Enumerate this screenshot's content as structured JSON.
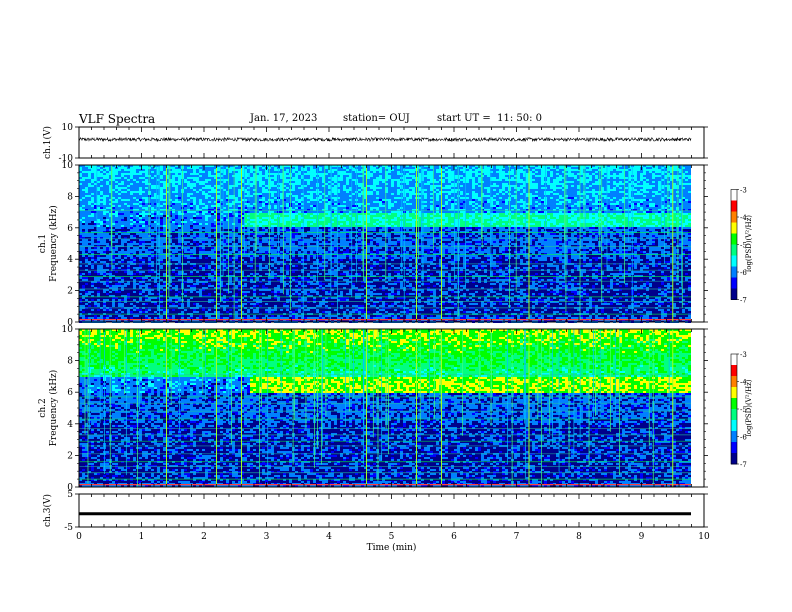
{
  "header": {
    "title": "VLF Spectra",
    "date": "Jan. 17, 2023",
    "station": "station= OUJ",
    "start": "start UT =  11: 50: 0"
  },
  "colors": {
    "colormap": [
      "#00008b",
      "#0000ff",
      "#0080ff",
      "#00ffff",
      "#00ff80",
      "#00ff00",
      "#ffff00",
      "#ff8000",
      "#ff0000",
      "#ffffff"
    ],
    "trace": "#000000",
    "background": "#ffffff"
  },
  "chart_data": [
    {
      "type": "line",
      "name": "ch1-waveform",
      "ylabel": "ch.1(V)",
      "ylim": [
        -10,
        10
      ],
      "yticks": [
        "10",
        "-10"
      ],
      "description_value": 2,
      "xlim": [
        0,
        10
      ]
    },
    {
      "type": "heatmap",
      "name": "ch1-spectrogram",
      "ylabel": "ch.1\nFrequency (kHz)",
      "ylabel_line1": "ch.1",
      "ylabel_line2": "Frequency (kHz)",
      "ylim": [
        0,
        10
      ],
      "yticks": [
        "0",
        "2",
        "4",
        "6",
        "8",
        "10"
      ],
      "xlim": [
        0,
        9.8
      ],
      "band_start_min": 2.6,
      "band_khz": [
        6.1,
        6.9
      ],
      "colorbar": {
        "label": "log(PSD)(V²/Hz)",
        "ticks": [
          "-3",
          "-4",
          "-5",
          "-6",
          "-7"
        ],
        "range": [
          -7,
          -3
        ]
      }
    },
    {
      "type": "heatmap",
      "name": "ch2-spectrogram",
      "ylabel": "ch.2\nFrequency (kHz)",
      "ylabel_line1": "ch.2",
      "ylabel_line2": "Frequency (kHz)",
      "ylim": [
        0,
        10
      ],
      "yticks": [
        "0",
        "2",
        "4",
        "6",
        "8",
        "10"
      ],
      "xlim": [
        0,
        9.8
      ],
      "band_start_min": 2.7,
      "band_khz": [
        5.9,
        6.9
      ],
      "colorbar": {
        "label": "log(PSD)(V²/Hz)",
        "ticks": [
          "-3",
          "-4",
          "-5",
          "-6",
          "-7"
        ],
        "range": [
          -7,
          -3
        ]
      }
    },
    {
      "type": "line",
      "name": "ch3-waveform",
      "ylabel": "ch.3(V)",
      "ylim": [
        -5,
        5
      ],
      "yticks": [
        "5",
        "-5"
      ],
      "constant_value": -1,
      "xlim": [
        0,
        10
      ],
      "xlabel": "Time (min)",
      "xticks": [
        "0",
        "1",
        "2",
        "3",
        "4",
        "5",
        "6",
        "7",
        "8",
        "9",
        "10"
      ]
    }
  ]
}
